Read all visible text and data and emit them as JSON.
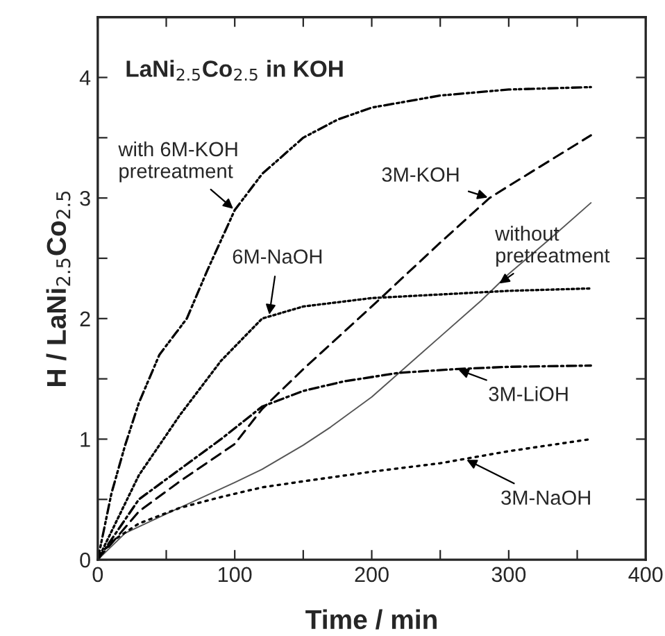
{
  "chart_data": {
    "type": "line",
    "title": "LaNi$_{2.5}$Co$_{2.5}$ in KOH",
    "xlabel": "Time / min",
    "ylabel": "H / LaNi$_{2.5}$Co$_{2.5}$",
    "xlim": [
      0,
      400
    ],
    "ylim": [
      0,
      4.5
    ],
    "xticks": [
      0,
      {
        "value": 50,
        "label": null
      },
      100,
      {
        "value": 150,
        "label": null
      },
      200,
      {
        "value": 250,
        "label": null
      },
      300,
      {
        "value": 350,
        "label": null
      },
      400
    ],
    "yticks": [
      0,
      {
        "value": 0.5,
        "label": null
      },
      1,
      {
        "value": 1.5,
        "label": null
      },
      2,
      {
        "value": 2.5,
        "label": null
      },
      3,
      {
        "value": 3.5,
        "label": null
      },
      4
    ],
    "grid": false,
    "legend": false,
    "series": [
      {
        "name": "with 6M-KOH\npretreatment",
        "color": "#000000",
        "line_style": "dashdotdot",
        "x": [
          0,
          10,
          20,
          30,
          45,
          65,
          80,
          100,
          120,
          150,
          175,
          200,
          250,
          300,
          360
        ],
        "values": [
          0,
          0.55,
          0.95,
          1.3,
          1.7,
          2.0,
          2.4,
          2.9,
          3.2,
          3.5,
          3.65,
          3.75,
          3.85,
          3.9,
          3.92
        ]
      },
      {
        "name": "3M-KOH",
        "color": "#000000",
        "line_style": "dashed",
        "x": [
          0,
          30,
          60,
          100,
          120,
          150,
          200,
          250,
          286,
          300,
          360
        ],
        "values": [
          0,
          0.4,
          0.65,
          0.96,
          1.25,
          1.58,
          2.1,
          2.63,
          3.0,
          3.1,
          3.52
        ]
      },
      {
        "name": "without\npretreatment",
        "color": "#555555",
        "line_style": "solid",
        "x": [
          0,
          20,
          50,
          100,
          120,
          150,
          170,
          200,
          220,
          250,
          280,
          300,
          330,
          360
        ],
        "values": [
          0,
          0.22,
          0.38,
          0.64,
          0.75,
          0.95,
          1.1,
          1.35,
          1.55,
          1.85,
          2.15,
          2.37,
          2.66,
          2.96
        ]
      },
      {
        "name": "6M-NaOH",
        "color": "#000000",
        "line_style": "dotted",
        "x": [
          0,
          30,
          60,
          90,
          120,
          150,
          200,
          250,
          300,
          360
        ],
        "values": [
          0,
          0.7,
          1.2,
          1.65,
          2.0,
          2.1,
          2.17,
          2.2,
          2.23,
          2.25
        ]
      },
      {
        "name": "3M-LiOH",
        "color": "#000000",
        "line_style": "dashdot",
        "x": [
          0,
          30,
          60,
          90,
          120,
          150,
          180,
          220,
          260,
          300,
          360
        ],
        "values": [
          0,
          0.5,
          0.75,
          1.0,
          1.27,
          1.4,
          1.48,
          1.55,
          1.58,
          1.6,
          1.61
        ]
      },
      {
        "name": "3M-NaOH",
        "color": "#000000",
        "line_style": "sparsedot",
        "x": [
          0,
          10,
          30,
          60,
          90,
          120,
          150,
          200,
          250,
          300,
          360
        ],
        "values": [
          0,
          0.15,
          0.3,
          0.43,
          0.52,
          0.6,
          0.65,
          0.73,
          0.8,
          0.9,
          1.0
        ]
      }
    ]
  }
}
